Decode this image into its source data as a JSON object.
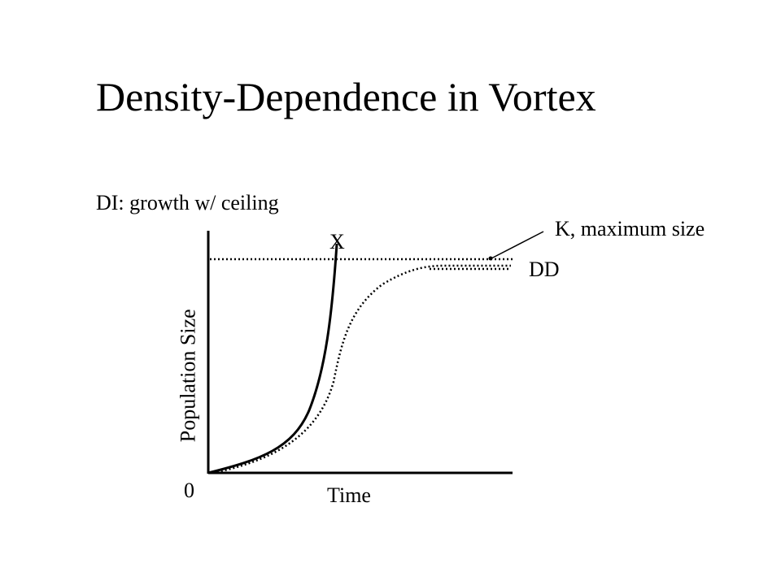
{
  "slide": {
    "title": "Density-Dependence in Vortex",
    "subtitle": "DI: growth w/ ceiling"
  },
  "diagram": {
    "y_axis_label": "Population Size",
    "x_axis_label": "Time",
    "origin_label": "0",
    "ceiling_label": "K, maximum size",
    "di_curve_label": "X",
    "dd_curve_label": "DD",
    "line_color": "#000000"
  }
}
